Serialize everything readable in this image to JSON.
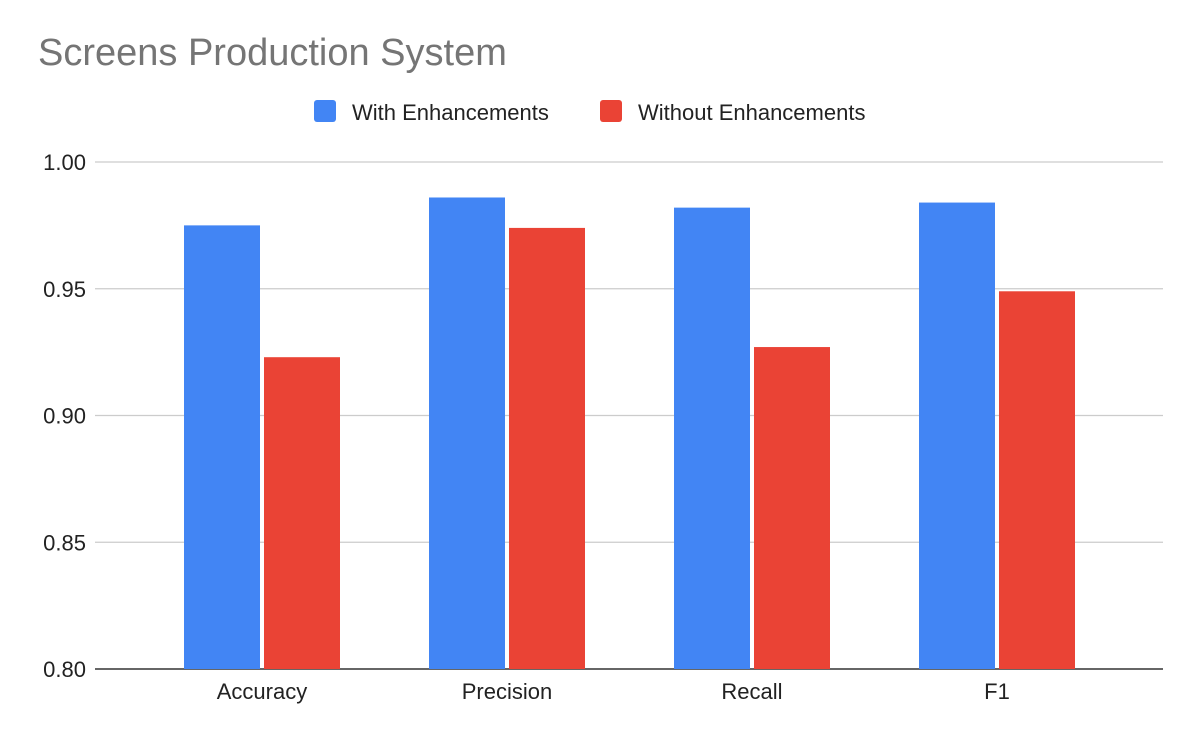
{
  "chart_data": {
    "type": "bar",
    "title": "Screens Production System",
    "xlabel": "",
    "ylabel": "",
    "categories": [
      "Accuracy",
      "Precision",
      "Recall",
      "F1"
    ],
    "series": [
      {
        "name": "With Enhancements",
        "color": "#4285f4",
        "values": [
          0.975,
          0.986,
          0.982,
          0.984
        ]
      },
      {
        "name": "Without Enhancements",
        "color": "#ea4335",
        "values": [
          0.923,
          0.974,
          0.927,
          0.949
        ]
      }
    ],
    "ylim": [
      0.8,
      1.0
    ],
    "yticks": [
      "0.80",
      "0.85",
      "0.90",
      "0.95",
      "1.00"
    ],
    "grid": true,
    "legend_position": "top-center"
  }
}
